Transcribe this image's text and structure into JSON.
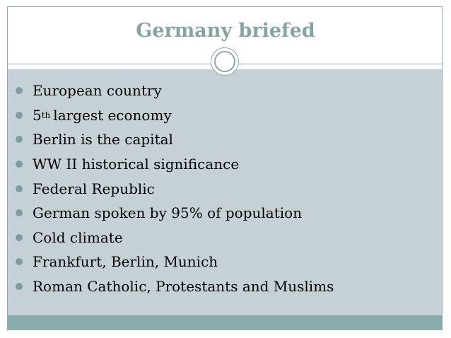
{
  "slide": {
    "title": "Germany briefed",
    "bullets": [
      {
        "text": "European country"
      },
      {
        "prefix": "5",
        "sup": "th",
        "text": "largest economy"
      },
      {
        "text": "Berlin is the capital"
      },
      {
        "text": "WW II historical significance"
      },
      {
        "text": "Federal Republic"
      },
      {
        "text": "German spoken by 95% of population"
      },
      {
        "text": "Cold climate"
      },
      {
        "text": "Frankfurt, Berlin, Munich"
      },
      {
        "text": "Roman Catholic, Protestants and Muslims"
      }
    ]
  },
  "theme": {
    "title_color": "#87a3a4",
    "panel_color": "#c5d1d7",
    "bar_color": "#8aabac",
    "bullet_color": "#7f9c9e",
    "ornament_icon": "double-ring-icon",
    "bullet_icon": "filled-circle-bullet-icon"
  }
}
